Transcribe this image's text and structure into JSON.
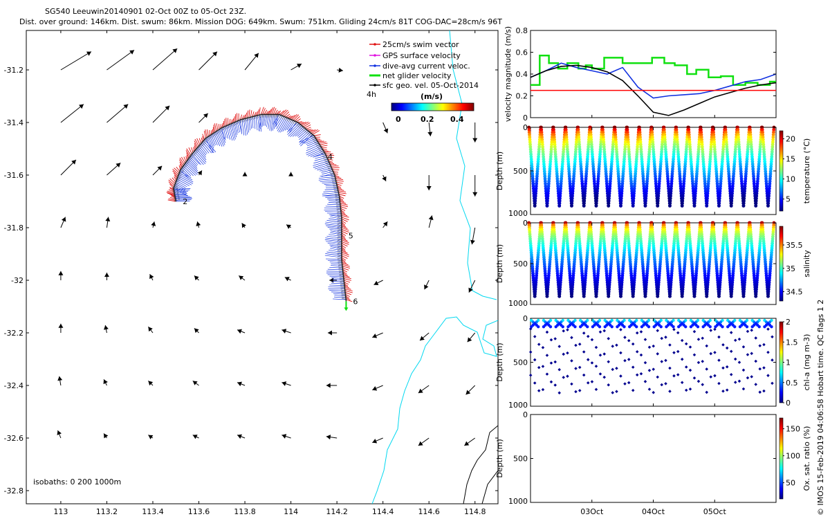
{
  "title": {
    "line1": "SG540 Leeuwin20140901 02-Oct 00Z to 05-Oct 23Z.",
    "line2": "Dist. over ground: 146km. Dist. swum: 86km. Mission DOG: 649km. Swum: 751km. Gliding 24cm/s 81T COG-DAC=28cm/s 96T"
  },
  "legend": {
    "items": [
      {
        "label": "25cm/s swim vector",
        "color": "#e01010"
      },
      {
        "label": "GPS surface velocity",
        "color": "#e010e0"
      },
      {
        "label": "dive-avg current veloc.",
        "color": "#1030e0"
      },
      {
        "label": "net glider velocity",
        "color": "#10e010"
      },
      {
        "label": "sfc geo. vel. 05-Oct-2014",
        "color": "#000000"
      }
    ],
    "time_step": "4h"
  },
  "colorbar_map": {
    "label": "(m/s)",
    "ticks": [
      "0",
      "0.2",
      "0.4"
    ]
  },
  "isobaths": {
    "label": "isobaths: 0   200  1000m"
  },
  "watermark": "© IMOS 15-Feb-2019 04:06:58 Hobart time. QC flags 1  2",
  "colors": {
    "swim": "#e01010",
    "dac": "#1030e0",
    "net": "#10e010",
    "geo": "#000000",
    "coast": "#00d8f0",
    "isobath": "#000000",
    "reference": "#ff0000"
  },
  "chart_data": [
    {
      "type": "scatter",
      "name": "map",
      "xlim": [
        112.85,
        114.9
      ],
      "ylim": [
        -32.85,
        -31.05
      ],
      "x_ticks": [
        113,
        113.2,
        113.4,
        113.6,
        113.8,
        114,
        114.2,
        114.4,
        114.6,
        114.8
      ],
      "x_tick_labels": [
        "113",
        "113.2",
        "113.4",
        "113.6",
        "113.8",
        "114",
        "114.2",
        "114.4",
        "114.6",
        "114.8"
      ],
      "y_ticks": [
        -31.2,
        -31.4,
        -31.6,
        -31.8,
        -32,
        -32.2,
        -32.4,
        -32.6,
        -32.8
      ],
      "y_tick_labels": [
        "-31.2",
        "-31.4",
        "-31.6",
        "-31.8",
        "-32",
        "-32.2",
        "-32.4",
        "-32.6",
        "-32.8"
      ],
      "track": [
        [
          113.5,
          -31.7
        ],
        [
          113.49,
          -31.65
        ],
        [
          113.52,
          -31.58
        ],
        [
          113.57,
          -31.52
        ],
        [
          113.63,
          -31.46
        ],
        [
          113.7,
          -31.42
        ],
        [
          113.78,
          -31.39
        ],
        [
          113.87,
          -31.37
        ],
        [
          113.95,
          -31.37
        ],
        [
          114.03,
          -31.4
        ],
        [
          114.1,
          -31.45
        ],
        [
          114.15,
          -31.52
        ],
        [
          114.19,
          -31.6
        ],
        [
          114.21,
          -31.68
        ],
        [
          114.22,
          -31.76
        ],
        [
          114.22,
          -31.84
        ],
        [
          114.22,
          -31.92
        ],
        [
          114.23,
          -32.0
        ],
        [
          114.24,
          -32.08
        ]
      ],
      "track_labels": [
        {
          "text": "2",
          "x": 113.53,
          "y": -31.7
        },
        {
          "text": "4",
          "x": 114.16,
          "y": -31.53
        },
        {
          "text": "5",
          "x": 114.25,
          "y": -31.83
        },
        {
          "text": "6",
          "x": 114.27,
          "y": -32.08
        }
      ],
      "geo_vectors": [
        {
          "x": 113.0,
          "y": -31.2,
          "u": 0.2,
          "v": 0.12
        },
        {
          "x": 113.2,
          "y": -31.2,
          "u": 0.18,
          "v": 0.13
        },
        {
          "x": 113.4,
          "y": -31.2,
          "u": 0.16,
          "v": 0.14
        },
        {
          "x": 113.6,
          "y": -31.2,
          "u": 0.12,
          "v": 0.12
        },
        {
          "x": 113.8,
          "y": -31.2,
          "u": 0.09,
          "v": 0.11
        },
        {
          "x": 114.0,
          "y": -31.2,
          "u": 0.07,
          "v": 0.04
        },
        {
          "x": 114.2,
          "y": -31.2,
          "u": 0.04,
          "v": -0.005
        },
        {
          "x": 113.0,
          "y": -31.4,
          "u": 0.15,
          "v": 0.12
        },
        {
          "x": 113.2,
          "y": -31.4,
          "u": 0.14,
          "v": 0.12
        },
        {
          "x": 113.4,
          "y": -31.4,
          "u": 0.11,
          "v": 0.11
        },
        {
          "x": 113.6,
          "y": -31.4,
          "u": 0.06,
          "v": 0.06
        },
        {
          "x": 114.4,
          "y": -31.4,
          "u": 0.03,
          "v": -0.07
        },
        {
          "x": 114.6,
          "y": -31.4,
          "u": 0.01,
          "v": -0.09
        },
        {
          "x": 114.8,
          "y": -31.4,
          "u": 0.0,
          "v": -0.13
        },
        {
          "x": 113.0,
          "y": -31.6,
          "u": 0.1,
          "v": 0.1
        },
        {
          "x": 113.2,
          "y": -31.6,
          "u": 0.09,
          "v": 0.08
        },
        {
          "x": 113.4,
          "y": -31.6,
          "u": 0.06,
          "v": 0.06
        },
        {
          "x": 113.6,
          "y": -31.6,
          "u": 0.02,
          "v": 0.03
        },
        {
          "x": 113.8,
          "y": -31.6,
          "u": 0.0,
          "v": 0.02
        },
        {
          "x": 114.0,
          "y": -31.6,
          "u": 0.0,
          "v": 0.02
        },
        {
          "x": 114.4,
          "y": -31.6,
          "u": 0.02,
          "v": -0.04
        },
        {
          "x": 114.6,
          "y": -31.6,
          "u": 0.0,
          "v": -0.1
        },
        {
          "x": 114.8,
          "y": -31.6,
          "u": 0.0,
          "v": -0.14
        },
        {
          "x": 113.0,
          "y": -31.8,
          "u": 0.03,
          "v": 0.07
        },
        {
          "x": 113.2,
          "y": -31.8,
          "u": 0.01,
          "v": 0.07
        },
        {
          "x": 113.4,
          "y": -31.8,
          "u": 0.01,
          "v": 0.04
        },
        {
          "x": 113.6,
          "y": -31.8,
          "u": -0.01,
          "v": 0.04
        },
        {
          "x": 113.8,
          "y": -31.8,
          "u": -0.02,
          "v": 0.03
        },
        {
          "x": 114.0,
          "y": -31.8,
          "u": -0.03,
          "v": 0.02
        },
        {
          "x": 114.4,
          "y": -31.8,
          "u": 0.03,
          "v": 0.04
        },
        {
          "x": 114.6,
          "y": -31.8,
          "u": 0.02,
          "v": 0.08
        },
        {
          "x": 114.8,
          "y": -31.8,
          "u": -0.02,
          "v": -0.11
        },
        {
          "x": 113.0,
          "y": -32.0,
          "u": 0.0,
          "v": 0.06
        },
        {
          "x": 113.2,
          "y": -32.0,
          "u": 0.0,
          "v": 0.05
        },
        {
          "x": 113.4,
          "y": -32.0,
          "u": -0.02,
          "v": 0.04
        },
        {
          "x": 113.6,
          "y": -32.0,
          "u": -0.03,
          "v": 0.03
        },
        {
          "x": 113.8,
          "y": -32.0,
          "u": -0.04,
          "v": 0.03
        },
        {
          "x": 114.0,
          "y": -32.0,
          "u": -0.04,
          "v": 0.02
        },
        {
          "x": 114.2,
          "y": -32.0,
          "u": -0.05,
          "v": 0.0
        },
        {
          "x": 114.4,
          "y": -32.0,
          "u": -0.06,
          "v": -0.03
        },
        {
          "x": 114.6,
          "y": -32.0,
          "u": -0.03,
          "v": -0.06
        },
        {
          "x": 114.8,
          "y": -32.0,
          "u": -0.04,
          "v": -0.08
        },
        {
          "x": 113.0,
          "y": -32.2,
          "u": 0.0,
          "v": 0.06
        },
        {
          "x": 113.2,
          "y": -32.2,
          "u": -0.01,
          "v": 0.05
        },
        {
          "x": 113.4,
          "y": -32.2,
          "u": -0.03,
          "v": 0.04
        },
        {
          "x": 113.6,
          "y": -32.2,
          "u": -0.03,
          "v": 0.03
        },
        {
          "x": 113.8,
          "y": -32.2,
          "u": -0.05,
          "v": 0.02
        },
        {
          "x": 114.0,
          "y": -32.2,
          "u": -0.06,
          "v": 0.02
        },
        {
          "x": 114.2,
          "y": -32.2,
          "u": -0.06,
          "v": 0.0
        },
        {
          "x": 114.4,
          "y": -32.2,
          "u": -0.07,
          "v": -0.03
        },
        {
          "x": 114.6,
          "y": -32.2,
          "u": -0.06,
          "v": -0.05
        },
        {
          "x": 114.8,
          "y": -32.2,
          "u": -0.05,
          "v": -0.06
        },
        {
          "x": 113.0,
          "y": -32.4,
          "u": -0.01,
          "v": 0.06
        },
        {
          "x": 113.2,
          "y": -32.4,
          "u": -0.02,
          "v": 0.04
        },
        {
          "x": 113.4,
          "y": -32.4,
          "u": -0.03,
          "v": 0.03
        },
        {
          "x": 113.6,
          "y": -32.4,
          "u": -0.04,
          "v": 0.03
        },
        {
          "x": 113.8,
          "y": -32.4,
          "u": -0.05,
          "v": 0.02
        },
        {
          "x": 114.0,
          "y": -32.4,
          "u": -0.06,
          "v": 0.02
        },
        {
          "x": 114.2,
          "y": -32.4,
          "u": -0.07,
          "v": 0.0
        },
        {
          "x": 114.4,
          "y": -32.4,
          "u": -0.07,
          "v": -0.03
        },
        {
          "x": 114.6,
          "y": -32.4,
          "u": -0.07,
          "v": -0.05
        },
        {
          "x": 114.8,
          "y": -32.4,
          "u": -0.06,
          "v": -0.06
        },
        {
          "x": 113.0,
          "y": -32.6,
          "u": -0.02,
          "v": 0.05
        },
        {
          "x": 113.2,
          "y": -32.6,
          "u": -0.02,
          "v": 0.03
        },
        {
          "x": 113.4,
          "y": -32.6,
          "u": -0.03,
          "v": 0.02
        },
        {
          "x": 113.6,
          "y": -32.6,
          "u": -0.04,
          "v": 0.02
        },
        {
          "x": 113.8,
          "y": -32.6,
          "u": -0.05,
          "v": 0.02
        },
        {
          "x": 114.0,
          "y": -32.6,
          "u": -0.06,
          "v": 0.02
        },
        {
          "x": 114.2,
          "y": -32.6,
          "u": -0.07,
          "v": 0.01
        },
        {
          "x": 114.4,
          "y": -32.6,
          "u": -0.07,
          "v": -0.03
        },
        {
          "x": 114.6,
          "y": -32.6,
          "u": -0.07,
          "v": -0.05
        },
        {
          "x": 114.8,
          "y": -32.6,
          "u": -0.07,
          "v": -0.05
        }
      ]
    },
    {
      "type": "line",
      "name": "velocity",
      "ylabel": "velocity magnitude (m/s)",
      "ylim": [
        0,
        0.8
      ],
      "yticks": [
        "0",
        "0.2",
        "0.4",
        "0.6",
        "0.8"
      ],
      "x_range_days": [
        1.0,
        5.0
      ],
      "series": [
        {
          "color": "#10e010",
          "x": [
            1.0,
            1.15,
            1.15,
            1.3,
            1.3,
            1.45,
            1.45,
            1.6,
            1.6,
            1.78,
            1.78,
            1.9,
            1.9,
            2.0,
            2.0,
            2.2,
            2.2,
            2.5,
            2.5,
            2.75,
            2.75,
            2.98,
            2.98,
            3.18,
            3.18,
            3.35,
            3.35,
            3.55,
            3.55,
            3.7,
            3.7,
            3.9,
            3.9,
            4.1,
            4.1,
            4.3,
            4.3,
            4.5,
            4.5,
            4.7,
            4.7,
            4.9,
            4.9,
            5.0
          ],
          "y": [
            0.3,
            0.3,
            0.57,
            0.57,
            0.5,
            0.5,
            0.45,
            0.45,
            0.5,
            0.5,
            0.45,
            0.45,
            0.48,
            0.48,
            0.45,
            0.45,
            0.55,
            0.55,
            0.5,
            0.5,
            0.5,
            0.5,
            0.55,
            0.55,
            0.5,
            0.5,
            0.48,
            0.48,
            0.4,
            0.4,
            0.44,
            0.44,
            0.37,
            0.37,
            0.38,
            0.38,
            0.3,
            0.3,
            0.32,
            0.32,
            0.3,
            0.3,
            0.33,
            0.33
          ]
        },
        {
          "color": "#1030e0",
          "x": [
            1.0,
            1.25,
            1.5,
            1.75,
            2.0,
            2.25,
            2.5,
            2.75,
            3.0,
            3.25,
            3.5,
            3.75,
            4.0,
            4.25,
            4.5,
            4.75,
            5.0
          ],
          "y": [
            0.37,
            0.43,
            0.5,
            0.46,
            0.43,
            0.4,
            0.46,
            0.28,
            0.18,
            0.2,
            0.21,
            0.22,
            0.25,
            0.29,
            0.33,
            0.35,
            0.4
          ]
        },
        {
          "color": "#000000",
          "x": [
            1.0,
            1.25,
            1.5,
            1.75,
            2.0,
            2.25,
            2.5,
            2.75,
            3.0,
            3.25,
            3.5,
            3.75,
            4.0,
            4.25,
            4.5,
            4.75,
            5.0
          ],
          "y": [
            0.37,
            0.43,
            0.47,
            0.48,
            0.46,
            0.42,
            0.34,
            0.2,
            0.05,
            0.02,
            0.07,
            0.13,
            0.19,
            0.23,
            0.27,
            0.3,
            0.32
          ]
        },
        {
          "color": "#ff0000",
          "x": [
            1.0,
            5.0
          ],
          "y": [
            0.25,
            0.25
          ]
        }
      ]
    },
    {
      "type": "scatter",
      "name": "temperature",
      "ylabel": "Depth (m)",
      "ylim": [
        1000,
        0
      ],
      "yticks": [
        "0",
        "500",
        "1000"
      ],
      "colorbar_label": "temperature (°C)",
      "colorbar_range": [
        2,
        22
      ],
      "colorbar_ticks": [
        "5",
        "10",
        "15",
        "20"
      ],
      "dive_times_days": [
        1.07,
        1.27,
        1.47,
        1.67,
        1.87,
        2.07,
        2.27,
        2.47,
        2.67,
        2.87,
        3.07,
        3.27,
        3.47,
        3.67,
        3.87,
        4.07,
        4.27,
        4.47,
        4.67,
        4.87
      ],
      "max_depth_m": 1000,
      "range": [
        4,
        22
      ]
    },
    {
      "type": "scatter",
      "name": "salinity",
      "ylabel": "Depth (m)",
      "ylim": [
        1000,
        0
      ],
      "yticks": [
        "0",
        "500",
        "1000"
      ],
      "colorbar_label": "salinity",
      "colorbar_range": [
        34.3,
        35.9
      ],
      "colorbar_ticks": [
        "34.5",
        "35",
        "35.5"
      ],
      "dive_times_days": [
        1.07,
        1.27,
        1.47,
        1.67,
        1.87,
        2.07,
        2.27,
        2.47,
        2.67,
        2.87,
        3.07,
        3.27,
        3.47,
        3.67,
        3.87,
        4.07,
        4.27,
        4.47,
        4.67,
        4.87
      ],
      "max_depth_m": 1000
    },
    {
      "type": "scatter",
      "name": "chl",
      "ylabel": "Depth (m)",
      "ylim": [
        1000,
        0
      ],
      "yticks": [
        "0",
        "500",
        "1000"
      ],
      "colorbar_label": "chl-a (mg m-3)",
      "colorbar_range": [
        0,
        2
      ],
      "colorbar_ticks": [
        "0",
        "0.5",
        "1",
        "1.5",
        "2"
      ],
      "dive_times_days": [
        1.07,
        1.27,
        1.47,
        1.67,
        1.87,
        2.07,
        2.27,
        2.47,
        2.67,
        2.87,
        3.07,
        3.27,
        3.47,
        3.67,
        3.87,
        4.07,
        4.27,
        4.47,
        4.67,
        4.87
      ],
      "max_depth_m": 900
    },
    {
      "type": "scatter",
      "name": "oxygen",
      "ylabel": "Depth (m)",
      "ylim": [
        1000,
        0
      ],
      "yticks": [
        "0",
        "500",
        "1000"
      ],
      "colorbar_label": "Ox. sat. ratio (%)",
      "colorbar_range": [
        20,
        170
      ],
      "colorbar_ticks": [
        "50",
        "100",
        "150"
      ],
      "x_ticks_days": [
        2,
        3,
        4
      ],
      "x_tick_labels": [
        "03Oct",
        "04Oct",
        "05Oct"
      ]
    }
  ]
}
